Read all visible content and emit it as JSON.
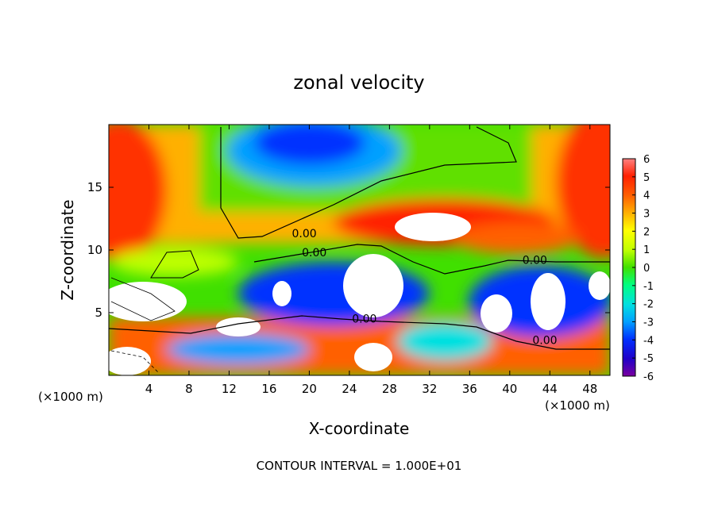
{
  "chart_data": {
    "type": "heatmap",
    "title": "zonal velocity",
    "xlabel": "X-coordinate",
    "ylabel": "Z-coordinate",
    "x_unit": "(×1000 m)",
    "z_unit": "(×1000 m)",
    "footer": "CONTOUR INTERVAL = 1.000E+01",
    "xlim": [
      0,
      50
    ],
    "ylim": [
      0,
      20
    ],
    "x_ticks": [
      4,
      8,
      12,
      16,
      20,
      24,
      28,
      32,
      36,
      40,
      44,
      48
    ],
    "y_ticks": [
      5,
      10,
      15
    ],
    "colorbar": {
      "ticks": [
        6,
        5,
        4,
        3,
        2,
        1,
        0,
        -1,
        -2,
        -3,
        -4,
        -5,
        -6
      ],
      "range": [
        -6,
        6
      ],
      "colors": [
        "#7a00a0",
        "#2000c8",
        "#0030ff",
        "#00a0ff",
        "#00e0e0",
        "#00ff80",
        "#40e000",
        "#c0ff00",
        "#ffff00",
        "#ffb000",
        "#ff6000",
        "#ff2000",
        "#ff8080"
      ]
    },
    "contour_labels": [
      {
        "text": "0.00",
        "x": 19.5,
        "z": 11.0
      },
      {
        "text": "0.00",
        "x": 20.5,
        "z": 9.5
      },
      {
        "text": "0.00",
        "x": 42.5,
        "z": 8.9
      },
      {
        "text": "0.00",
        "x": 25.5,
        "z": 4.2
      },
      {
        "text": "0.00",
        "x": 43.5,
        "z": 2.5
      }
    ]
  }
}
